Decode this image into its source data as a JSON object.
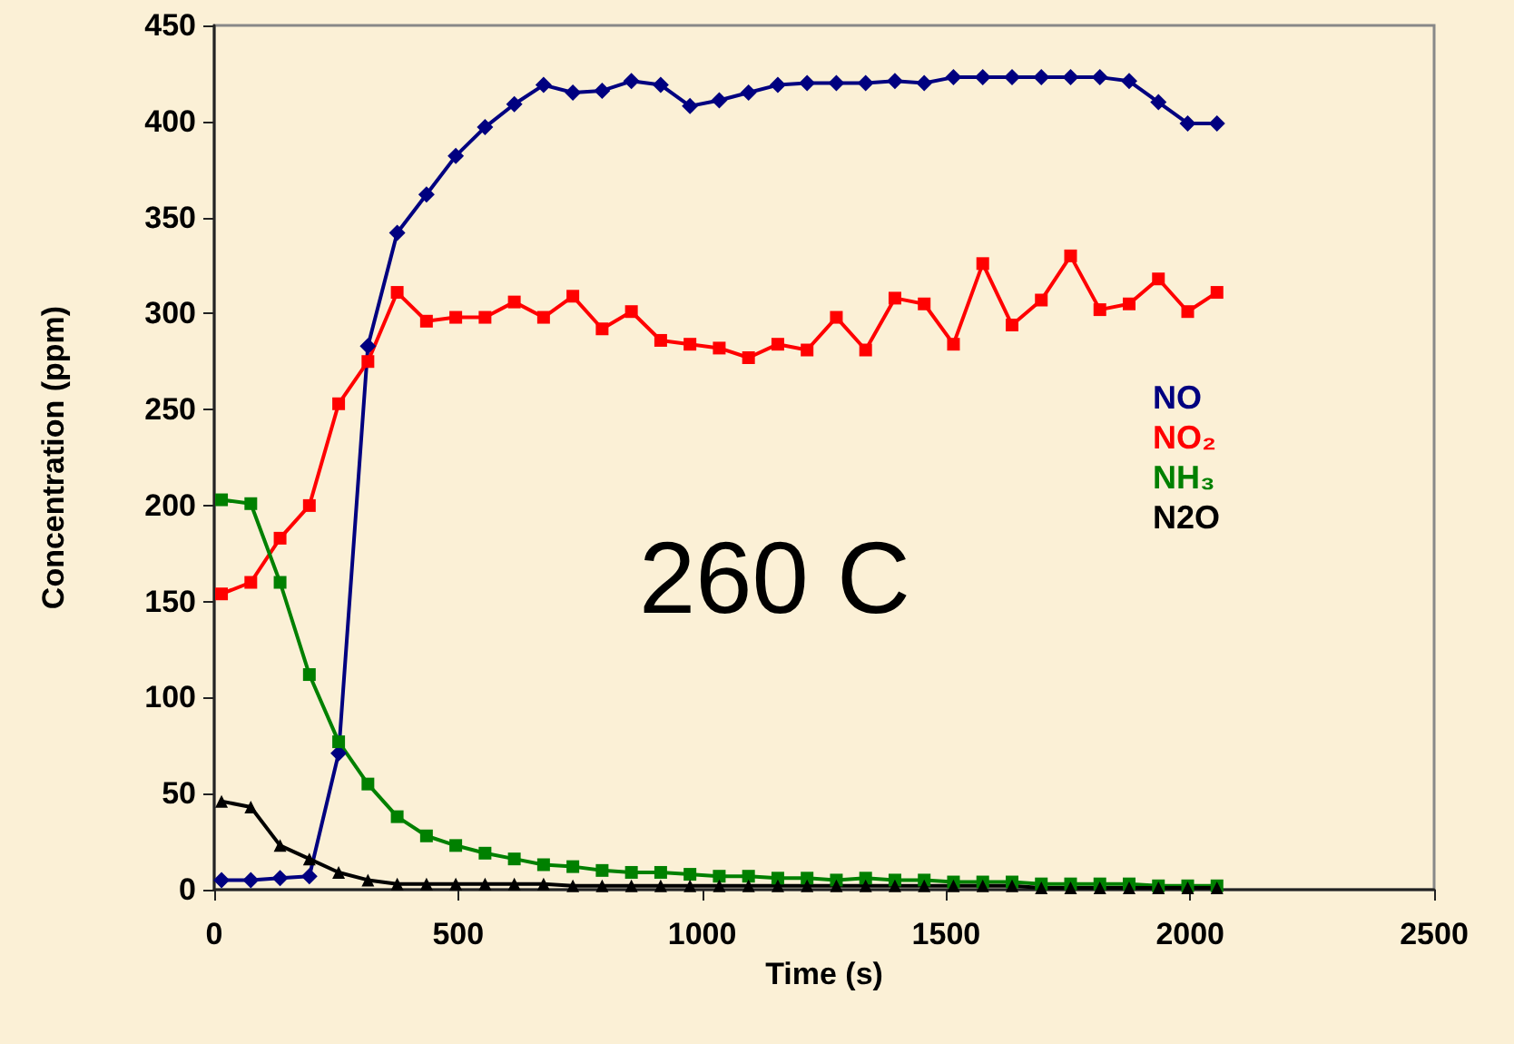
{
  "chart_data": {
    "type": "line",
    "xlabel": "Time (s)",
    "ylabel": "Concentration (ppm)",
    "annotations": [
      "260 C"
    ],
    "x": [
      15,
      75,
      135,
      195,
      255,
      315,
      375,
      435,
      495,
      555,
      615,
      675,
      735,
      795,
      855,
      915,
      975,
      1035,
      1095,
      1155,
      1215,
      1275,
      1335,
      1395,
      1455,
      1515,
      1575,
      1635,
      1695,
      1755,
      1815,
      1875,
      1935,
      1995,
      2055
    ],
    "series": [
      {
        "name": "NO",
        "color": "#000080",
        "marker": "diamond",
        "values": [
          5,
          5,
          6,
          7,
          71,
          283,
          342,
          362,
          382,
          397,
          409,
          419,
          415,
          416,
          421,
          419,
          408,
          411,
          415,
          419,
          420,
          420,
          420,
          421,
          420,
          423,
          423,
          423,
          423,
          423,
          423,
          421,
          410,
          399,
          399
        ]
      },
      {
        "name": "NO₂",
        "color": "#ff0000",
        "marker": "square",
        "values": [
          154,
          160,
          183,
          200,
          253,
          275,
          311,
          296,
          298,
          298,
          306,
          298,
          309,
          292,
          301,
          286,
          284,
          282,
          277,
          284,
          281,
          298,
          281,
          308,
          305,
          284,
          326,
          294,
          307,
          330,
          302,
          305,
          318,
          301,
          311
        ]
      },
      {
        "name": "NH₃",
        "color": "#008000",
        "marker": "square",
        "values": [
          203,
          201,
          160,
          112,
          77,
          55,
          38,
          28,
          23,
          19,
          16,
          13,
          12,
          10,
          9,
          9,
          8,
          7,
          7,
          6,
          6,
          5,
          6,
          5,
          5,
          4,
          4,
          4,
          3,
          3,
          3,
          3,
          2,
          2,
          2
        ]
      },
      {
        "name": "N2O",
        "color": "#000000",
        "marker": "triangle",
        "values": [
          46,
          43,
          23,
          16,
          9,
          5,
          3,
          3,
          3,
          3,
          3,
          3,
          2,
          2,
          2,
          2,
          2,
          2,
          2,
          2,
          2,
          2,
          2,
          2,
          2,
          2,
          2,
          2,
          1,
          1,
          1,
          1,
          1,
          1,
          1
        ]
      }
    ],
    "xlim": [
      0,
      2500
    ],
    "xticks": [
      0,
      500,
      1000,
      1500,
      2000,
      2500
    ],
    "ylim": [
      0,
      450
    ],
    "yticks": [
      0,
      50,
      100,
      150,
      200,
      250,
      300,
      350,
      400,
      450
    ],
    "grid": false,
    "legend": "right",
    "line_style": "solid"
  }
}
